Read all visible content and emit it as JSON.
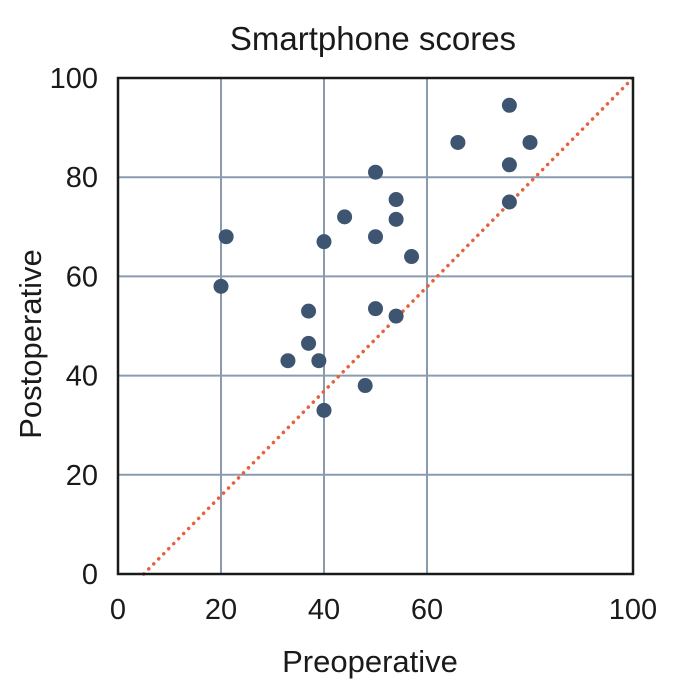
{
  "chart_data": {
    "type": "scatter",
    "title": "Smartphone scores",
    "xlabel": "Preoperative",
    "ylabel": "Postoperative",
    "xlim": [
      0,
      100
    ],
    "ylim": [
      0,
      100
    ],
    "x_ticks": [
      0,
      20,
      40,
      60,
      100
    ],
    "y_ticks": [
      0,
      20,
      40,
      60,
      80,
      100
    ],
    "x_grid": [
      20,
      40,
      60
    ],
    "y_grid": [
      20,
      40,
      60,
      80
    ],
    "grid": true,
    "reference_line": {
      "style": "dotted",
      "color": "#e8603c",
      "points": [
        [
          5,
          0
        ],
        [
          100,
          100
        ]
      ]
    },
    "point_color": "#3e5572",
    "series": [
      {
        "points": [
          [
            21,
            68
          ],
          [
            20,
            58
          ],
          [
            33,
            43
          ],
          [
            37,
            53
          ],
          [
            37,
            46.5
          ],
          [
            39,
            43
          ],
          [
            40,
            67
          ],
          [
            40,
            33
          ],
          [
            44,
            72
          ],
          [
            48,
            38
          ],
          [
            50,
            81
          ],
          [
            50,
            68
          ],
          [
            50,
            53.5
          ],
          [
            54,
            75.5
          ],
          [
            54,
            71.5
          ],
          [
            54,
            52
          ],
          [
            57,
            64
          ],
          [
            66,
            87
          ],
          [
            76,
            94.5
          ],
          [
            76,
            82.5
          ],
          [
            76,
            75
          ],
          [
            80,
            87
          ]
        ]
      }
    ]
  }
}
